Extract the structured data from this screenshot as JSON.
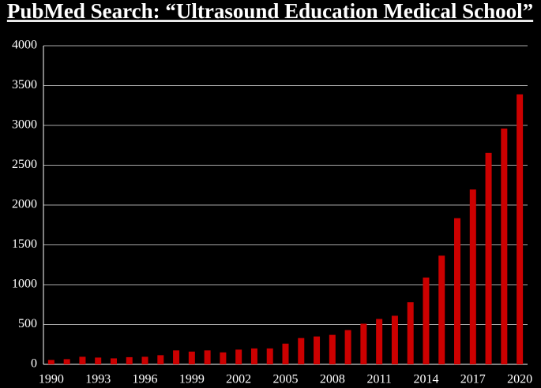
{
  "chart_data": {
    "type": "bar",
    "title": "PubMed Search: “Ultrasound Education Medical School”",
    "categories": [
      "1990",
      null,
      null,
      "1993",
      null,
      null,
      "1996",
      null,
      null,
      "1999",
      null,
      null,
      "2002",
      null,
      null,
      "2005",
      null,
      null,
      "2008",
      null,
      null,
      "2011",
      null,
      null,
      "2014",
      null,
      null,
      "2017",
      null,
      null,
      "2020"
    ],
    "values": [
      55,
      65,
      95,
      85,
      75,
      90,
      95,
      115,
      175,
      160,
      175,
      150,
      185,
      200,
      200,
      260,
      330,
      350,
      370,
      430,
      510,
      570,
      610,
      780,
      1090,
      1365,
      1835,
      2195,
      2655,
      2960,
      3390
    ],
    "color": "#cc0000",
    "ylim": [
      0,
      4000
    ],
    "yticks": [
      0,
      500,
      1000,
      1500,
      2000,
      2500,
      3000,
      3500,
      4000
    ],
    "grid": true
  }
}
